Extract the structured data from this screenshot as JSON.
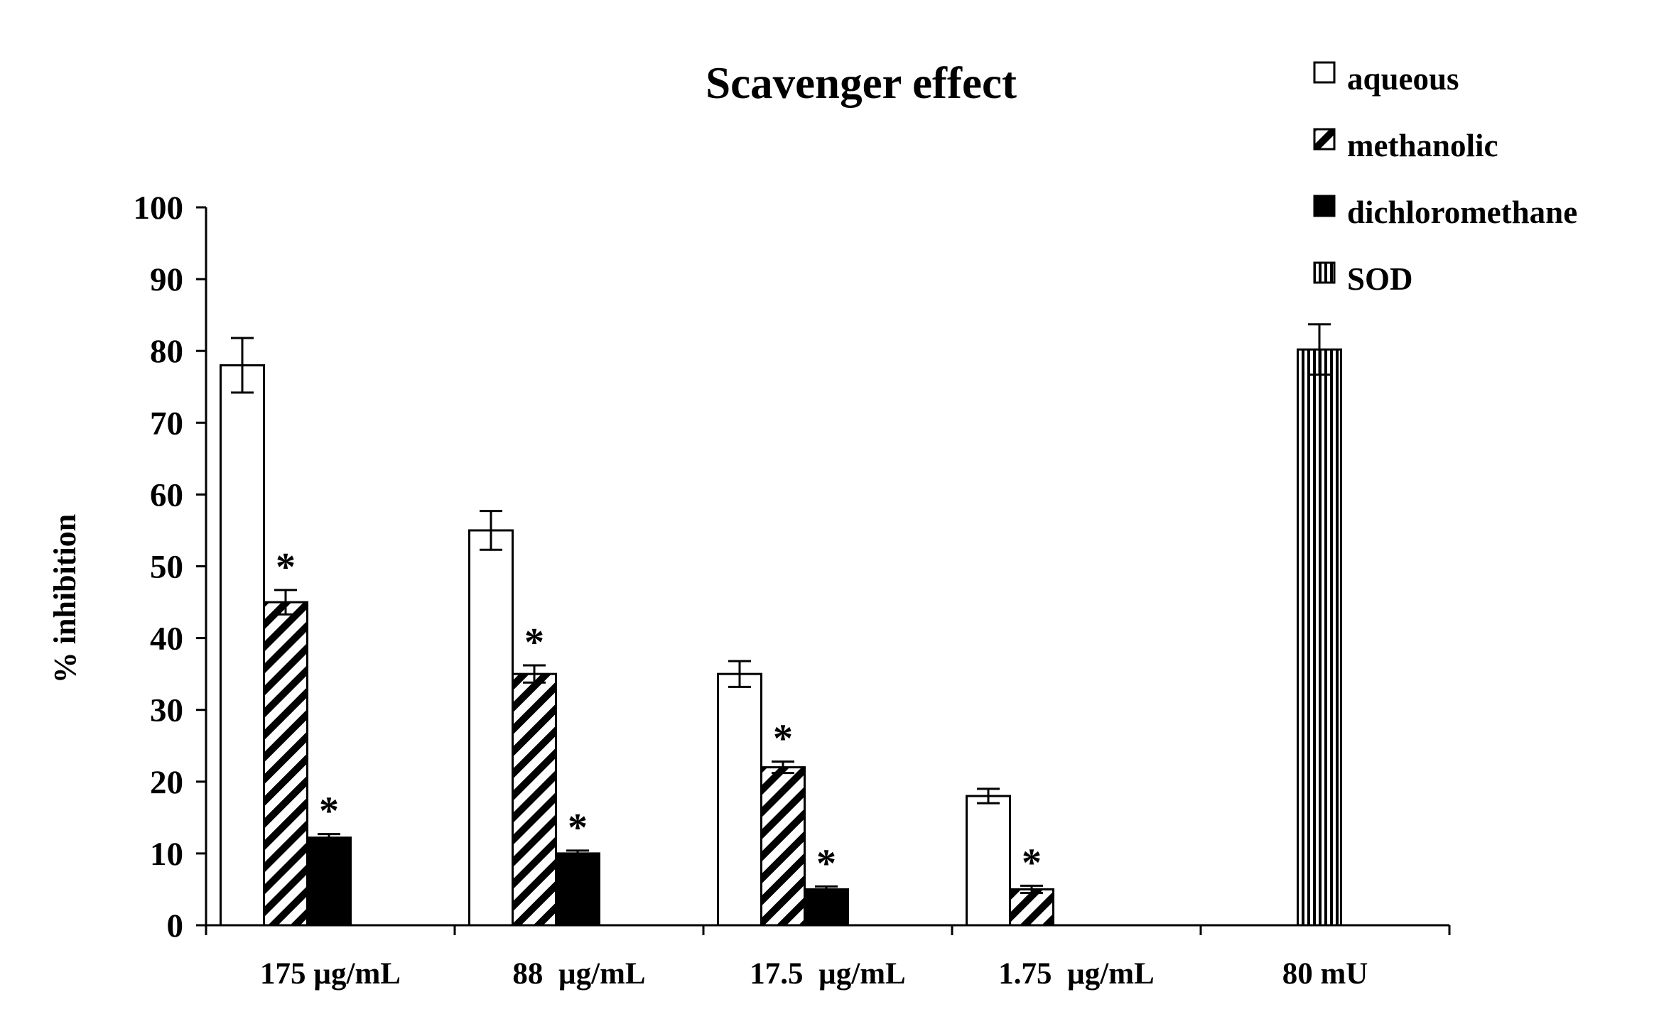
{
  "chart_data": {
    "type": "bar",
    "title": "Scavenger effect",
    "xlabel": "",
    "ylabel": "% inhibition",
    "ylim": [
      0,
      100
    ],
    "yticks": [
      0,
      10,
      20,
      30,
      40,
      50,
      60,
      70,
      80,
      90,
      100
    ],
    "categories": [
      "175 µg/mL",
      "88  µg/mL",
      "17.5  µg/mL",
      "1.75  µg/mL",
      "80 mU"
    ],
    "legend_position": "top-right",
    "grid": false,
    "significance_marker": "*",
    "series": [
      {
        "name": "aqueous",
        "pattern": "solid-white",
        "values": [
          78,
          55,
          35,
          18,
          null
        ],
        "errors": [
          3.8,
          2.7,
          1.8,
          1.0,
          null
        ],
        "significant": [
          false,
          false,
          false,
          false,
          false
        ]
      },
      {
        "name": "methanolic",
        "pattern": "diagonal-hatch",
        "values": [
          45,
          35,
          22,
          5,
          null
        ],
        "errors": [
          1.7,
          1.2,
          0.8,
          0.5,
          null
        ],
        "significant": [
          true,
          true,
          true,
          true,
          false
        ]
      },
      {
        "name": "dichloromethane",
        "pattern": "solid-black",
        "values": [
          12.2,
          10,
          5,
          null,
          null
        ],
        "errors": [
          0.5,
          0.4,
          0.4,
          null,
          null
        ],
        "significant": [
          true,
          true,
          true,
          false,
          false
        ]
      },
      {
        "name": "SOD",
        "pattern": "vertical-lines",
        "values": [
          null,
          null,
          null,
          null,
          80.2
        ],
        "errors": [
          null,
          null,
          null,
          null,
          3.5
        ],
        "significant": [
          false,
          false,
          false,
          false,
          false
        ]
      }
    ]
  }
}
